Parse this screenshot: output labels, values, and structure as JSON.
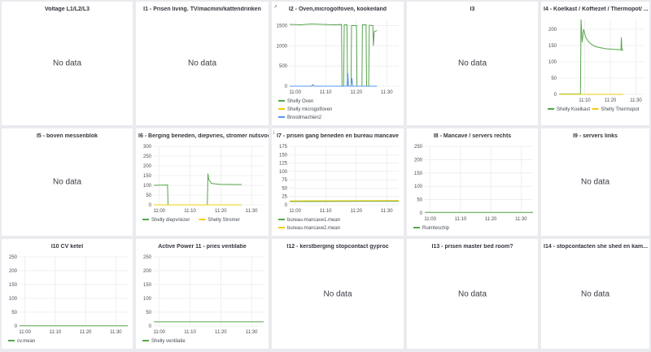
{
  "colors": {
    "green": "#56a64b",
    "yellow": "#f2cc0c",
    "blue": "#5794f2",
    "grid": "#e6e6e6",
    "axis_text": "#464c54"
  },
  "panels": [
    {
      "title": "Voltage L1/L2/L3",
      "no_data": "No data"
    },
    {
      "title": "I1 - Prisen living. TV/macmini/kattendrinken",
      "no_data": "No data"
    },
    {
      "title": "I2 - Oven,micro­golfoven, kookeiland",
      "chart": true
    },
    {
      "title": "I3",
      "no_data": "No data"
    },
    {
      "title": "I4 - Koelkast / Koffiezet / Thermopot/ ...",
      "chart": true
    },
    {
      "title": "I5 - boven messenblok",
      "no_data": "No data"
    },
    {
      "title": "I6 - Berging beneden, diepvries, stromer nutsvoor...",
      "chart": true
    },
    {
      "title": "I7 - prisen gang beneden en bureau mancave",
      "chart": true
    },
    {
      "title": "I8 - Mancave / servers rechts",
      "chart": true
    },
    {
      "title": "I9 - servers links",
      "no_data": "No data"
    },
    {
      "title": "I10 CV ketel",
      "chart": true
    },
    {
      "title": "Active Power 11 - pries ventilatie",
      "chart": true
    },
    {
      "title": "I12 - kerstberging stopcontact gyproc",
      "no_data": "No data"
    },
    {
      "title": "I13 - prisen master bed room?",
      "no_data": "No data"
    },
    {
      "title": "I14 - stopcontacten she shed en kam...",
      "no_data": "No data"
    }
  ],
  "chart_data": [
    {
      "panel": "I2 - Oven,microgolfoven, kookeiland",
      "type": "line",
      "x_ticks": [
        "11:00",
        "11:10",
        "11:20",
        "11:30"
      ],
      "y_ticks": [
        0,
        500,
        1000,
        1500
      ],
      "ylim": [
        0,
        1650
      ],
      "xlim": [
        0,
        40
      ],
      "series": [
        {
          "name": "Shelly Oven",
          "color": "green",
          "points": [
            [
              0,
              1530
            ],
            [
              4,
              1520
            ],
            [
              8,
              1540
            ],
            [
              12,
              1530
            ],
            [
              16,
              1520
            ],
            [
              19,
              1525
            ],
            [
              19.2,
              0
            ],
            [
              19.8,
              0
            ],
            [
              20,
              1520
            ],
            [
              21,
              1520
            ],
            [
              21.2,
              0
            ],
            [
              22.5,
              0
            ],
            [
              22.7,
              1500
            ],
            [
              24.5,
              1500
            ],
            [
              24.7,
              0
            ],
            [
              26.5,
              0
            ],
            [
              26.7,
              1520
            ],
            [
              28,
              1520
            ],
            [
              28.2,
              0
            ],
            [
              29,
              0
            ],
            [
              29.2,
              1510
            ],
            [
              30.5,
              1500
            ],
            [
              30.7,
              1000
            ],
            [
              31,
              1350
            ],
            [
              32,
              1380
            ]
          ]
        },
        {
          "name": "Shelly microgolfoven",
          "color": "yellow",
          "points": [
            [
              0,
              0
            ],
            [
              32,
              0
            ]
          ]
        },
        {
          "name": "Broodmachien2",
          "color": "blue",
          "points": [
            [
              0,
              0
            ],
            [
              8,
              0
            ],
            [
              8.5,
              40
            ],
            [
              9,
              0
            ],
            [
              21,
              0
            ],
            [
              21.3,
              330
            ],
            [
              21.6,
              0
            ],
            [
              22.5,
              0
            ],
            [
              22.8,
              200
            ],
            [
              23.1,
              0
            ],
            [
              32,
              0
            ]
          ]
        }
      ]
    },
    {
      "panel": "I4 - Koelkast / Koffiezet / Thermopot/ ...",
      "type": "line",
      "x_ticks": [
        "11:10",
        "11:20",
        "11:30"
      ],
      "y_ticks": [
        0,
        50,
        100,
        150,
        200
      ],
      "ylim": [
        0,
        230
      ],
      "xlim": [
        0,
        40
      ],
      "series": [
        {
          "name": "Shelly Koelkast",
          "color": "green",
          "points": [
            [
              0,
              1
            ],
            [
              10,
              1
            ],
            [
              10.3,
              230
            ],
            [
              10.8,
              160
            ],
            [
              11.5,
              200
            ],
            [
              12.5,
              175
            ],
            [
              14,
              160
            ],
            [
              16,
              150
            ],
            [
              18,
              145
            ],
            [
              22,
              140
            ],
            [
              26,
              138
            ],
            [
              29,
              137
            ],
            [
              29.2,
              175
            ],
            [
              29.4,
              135
            ],
            [
              30,
              137
            ]
          ]
        },
        {
          "name": "Shelly Thermopot",
          "color": "yellow",
          "points": [
            [
              0,
              0
            ],
            [
              30,
              0
            ]
          ]
        }
      ]
    },
    {
      "panel": "I6 - Berging beneden, diepvries, stromer nutsvoor...",
      "type": "line",
      "x_ticks": [
        "11:00",
        "11:10",
        "11:20",
        "11:30"
      ],
      "y_ticks": [
        0,
        50,
        100,
        150,
        200,
        250,
        300
      ],
      "ylim": [
        0,
        300
      ],
      "xlim": [
        0,
        40
      ],
      "series": [
        {
          "name": "Shelly diepvriezer",
          "color": "green",
          "points": [
            [
              0,
              100
            ],
            [
              5,
              102
            ],
            [
              5.2,
              0
            ],
            [
              19.5,
              0
            ],
            [
              19.7,
              160
            ],
            [
              20,
              130
            ],
            [
              21,
              110
            ],
            [
              24,
              105
            ],
            [
              30,
              104
            ],
            [
              32,
              104
            ]
          ]
        },
        {
          "name": "Shelly Stromer",
          "color": "yellow",
          "points": [
            [
              0,
              0
            ],
            [
              32,
              0
            ]
          ]
        }
      ]
    },
    {
      "panel": "I7 - prisen gang beneden en bureau mancave",
      "type": "line",
      "x_ticks": [
        "11:00",
        "11:10",
        "11:20",
        "11:30"
      ],
      "y_ticks": [
        0,
        25,
        50,
        75,
        100,
        125,
        150,
        175
      ],
      "ylim": [
        0,
        175
      ],
      "xlim": [
        0,
        40
      ],
      "series": [
        {
          "name": "bureau-mancave1.mean",
          "color": "green",
          "points": [
            [
              0,
              10
            ],
            [
              40,
              11
            ]
          ]
        },
        {
          "name": "bureau-mancave2.mean",
          "color": "yellow",
          "points": [
            [
              0,
              12
            ],
            [
              40,
              13
            ]
          ]
        }
      ]
    },
    {
      "panel": "I8 - Mancave / servers rechts",
      "type": "line",
      "x_ticks": [
        "11:00",
        "11:10",
        "11:20",
        "11:30"
      ],
      "y_ticks": [
        0,
        50,
        100,
        150,
        200,
        250
      ],
      "ylim": [
        0,
        250
      ],
      "xlim": [
        0,
        40
      ],
      "series": [
        {
          "name": "Ruimteschip",
          "color": "green",
          "points": [
            [
              0,
              2
            ],
            [
              40,
              2
            ]
          ]
        }
      ]
    },
    {
      "panel": "I10 CV ketel",
      "type": "line",
      "x_ticks": [
        "11:00",
        "11:10",
        "11:20",
        "11:30"
      ],
      "y_ticks": [
        0,
        50,
        100,
        150,
        200,
        250
      ],
      "ylim": [
        0,
        250
      ],
      "xlim": [
        0,
        40
      ],
      "series": [
        {
          "name": "cv.mean",
          "color": "green",
          "points": [
            [
              0,
              1
            ],
            [
              40,
              1
            ]
          ]
        }
      ]
    },
    {
      "panel": "Active Power 11 - pries ventilatie",
      "type": "line",
      "x_ticks": [
        "11:00",
        "11:10",
        "11:20",
        "11:30"
      ],
      "y_ticks": [
        0,
        50,
        100,
        150,
        200,
        250
      ],
      "ylim": [
        0,
        250
      ],
      "xlim": [
        0,
        40
      ],
      "series": [
        {
          "name": "Shelly ventilatie",
          "color": "green",
          "points": [
            [
              0,
              15
            ],
            [
              40,
              15
            ]
          ]
        }
      ]
    }
  ]
}
